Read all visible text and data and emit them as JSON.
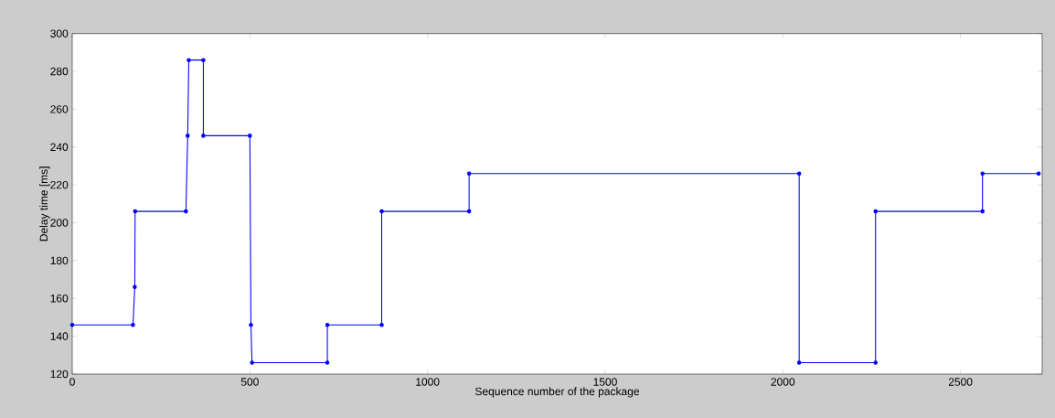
{
  "chart_data": {
    "type": "line",
    "xlabel": "Sequence number of the package",
    "ylabel": "Delay time [ms]",
    "xlim": [
      0,
      2730
    ],
    "ylim": [
      120,
      300
    ],
    "xticks": [
      0,
      500,
      1000,
      1500,
      2000,
      2500
    ],
    "yticks": [
      120,
      140,
      160,
      180,
      200,
      220,
      240,
      260,
      280,
      300
    ],
    "marker": "circle",
    "line_style": "solid",
    "series": [
      {
        "color": "#0000ff",
        "x": [
          0,
          171,
          176,
          177,
          320,
          325,
          328,
          369,
          369,
          500,
          503,
          506,
          718,
          718,
          871,
          871,
          1117,
          1117,
          2046,
          2046,
          2261,
          2261,
          2562,
          2562,
          2720
        ],
        "values": [
          146,
          146,
          166,
          206,
          206,
          246,
          286,
          286,
          246,
          246,
          146,
          126,
          126,
          146,
          146,
          206,
          206,
          226,
          226,
          126,
          126,
          206,
          206,
          226,
          226
        ]
      }
    ]
  }
}
